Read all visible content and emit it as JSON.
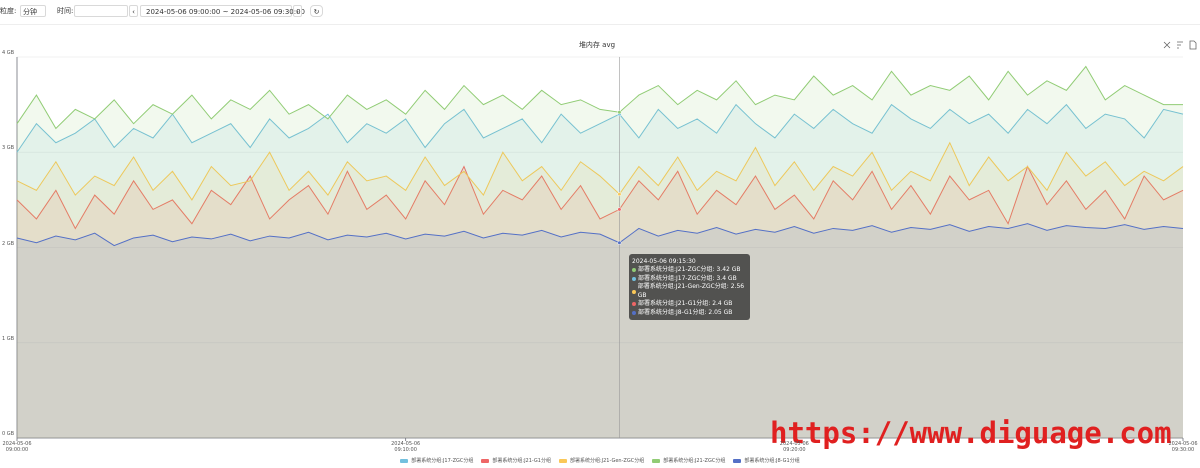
{
  "toolbar": {
    "granularity_label": "粒度:",
    "granularity": "分钟",
    "time_label": "时间:",
    "range": "2024-05-06 09:00:00 ~ 2024-05-06 09:30:00"
  },
  "watermark": "https://www.diguage.com",
  "chart_data": {
    "type": "area",
    "title": "堆内存 avg",
    "categories": [
      "2024-05-06 09:00:00",
      "2024-05-06 09:00:30",
      "2024-05-06 09:01:00",
      "2024-05-06 09:01:30",
      "2024-05-06 09:02:00",
      "2024-05-06 09:02:30",
      "2024-05-06 09:03:00",
      "2024-05-06 09:03:30",
      "2024-05-06 09:04:00",
      "2024-05-06 09:04:30",
      "2024-05-06 09:05:00",
      "2024-05-06 09:05:30",
      "2024-05-06 09:06:00",
      "2024-05-06 09:06:30",
      "2024-05-06 09:07:00",
      "2024-05-06 09:07:30",
      "2024-05-06 09:08:00",
      "2024-05-06 09:08:30",
      "2024-05-06 09:09:00",
      "2024-05-06 09:09:30",
      "2024-05-06 09:10:00",
      "2024-05-06 09:10:30",
      "2024-05-06 09:11:00",
      "2024-05-06 09:11:30",
      "2024-05-06 09:12:00",
      "2024-05-06 09:12:30",
      "2024-05-06 09:13:00",
      "2024-05-06 09:13:30",
      "2024-05-06 09:14:00",
      "2024-05-06 09:14:30",
      "2024-05-06 09:15:00",
      "2024-05-06 09:15:30",
      "2024-05-06 09:16:00",
      "2024-05-06 09:16:30",
      "2024-05-06 09:17:00",
      "2024-05-06 09:17:30",
      "2024-05-06 09:18:00",
      "2024-05-06 09:18:30",
      "2024-05-06 09:19:00",
      "2024-05-06 09:19:30",
      "2024-05-06 09:20:00",
      "2024-05-06 09:20:30",
      "2024-05-06 09:21:00",
      "2024-05-06 09:21:30",
      "2024-05-06 09:22:00",
      "2024-05-06 09:22:30",
      "2024-05-06 09:23:00",
      "2024-05-06 09:23:30",
      "2024-05-06 09:24:00",
      "2024-05-06 09:24:30",
      "2024-05-06 09:25:00",
      "2024-05-06 09:25:30",
      "2024-05-06 09:26:00",
      "2024-05-06 09:26:30",
      "2024-05-06 09:27:00",
      "2024-05-06 09:27:30",
      "2024-05-06 09:28:00",
      "2024-05-06 09:28:30",
      "2024-05-06 09:29:00",
      "2024-05-06 09:29:30",
      "2024-05-06 09:30:00"
    ],
    "series": [
      {
        "name": "部署系统分组:J17-ZGC分组",
        "color": "#73c0de",
        "values": [
          3.0,
          3.3,
          3.1,
          3.2,
          3.35,
          3.05,
          3.25,
          3.15,
          3.4,
          3.1,
          3.2,
          3.3,
          3.05,
          3.35,
          3.15,
          3.25,
          3.4,
          3.1,
          3.3,
          3.2,
          3.35,
          3.05,
          3.3,
          3.45,
          3.15,
          3.25,
          3.35,
          3.1,
          3.4,
          3.2,
          3.3,
          3.4,
          3.15,
          3.45,
          3.25,
          3.35,
          3.2,
          3.5,
          3.3,
          3.15,
          3.4,
          3.25,
          3.45,
          3.3,
          3.2,
          3.5,
          3.35,
          3.25,
          3.45,
          3.3,
          3.4,
          3.2,
          3.45,
          3.3,
          3.5,
          3.25,
          3.4,
          3.35,
          3.15,
          3.45,
          3.4
        ]
      },
      {
        "name": "部署系统分组:J21-G1分组",
        "color": "#ee6666",
        "values": [
          2.5,
          2.3,
          2.6,
          2.2,
          2.55,
          2.35,
          2.7,
          2.4,
          2.5,
          2.25,
          2.6,
          2.45,
          2.75,
          2.3,
          2.5,
          2.65,
          2.35,
          2.8,
          2.4,
          2.55,
          2.3,
          2.7,
          2.45,
          2.85,
          2.35,
          2.6,
          2.5,
          2.75,
          2.4,
          2.65,
          2.3,
          2.4,
          2.7,
          2.5,
          2.8,
          2.35,
          2.6,
          2.45,
          2.75,
          2.4,
          2.55,
          2.3,
          2.7,
          2.5,
          2.8,
          2.4,
          2.65,
          2.35,
          2.75,
          2.5,
          2.6,
          2.25,
          2.85,
          2.45,
          2.7,
          2.4,
          2.6,
          2.3,
          2.75,
          2.5,
          2.6
        ]
      },
      {
        "name": "部署系统分组:J21-Gen-ZGC分组",
        "color": "#fac858",
        "values": [
          2.7,
          2.6,
          2.9,
          2.55,
          2.75,
          2.65,
          2.95,
          2.6,
          2.8,
          2.5,
          2.85,
          2.65,
          2.7,
          3.0,
          2.6,
          2.8,
          2.55,
          2.9,
          2.7,
          2.75,
          2.6,
          2.95,
          2.65,
          2.8,
          2.55,
          3.0,
          2.7,
          2.85,
          2.6,
          2.9,
          2.75,
          2.56,
          2.85,
          2.65,
          2.95,
          2.6,
          2.8,
          2.7,
          3.05,
          2.65,
          2.9,
          2.6,
          2.85,
          2.75,
          3.0,
          2.6,
          2.8,
          2.7,
          3.1,
          2.65,
          2.95,
          2.7,
          2.85,
          2.6,
          3.0,
          2.75,
          2.9,
          2.65,
          2.8,
          2.7,
          2.85
        ]
      },
      {
        "name": "部署系统分组:J21-ZGC分组",
        "color": "#91cc75",
        "values": [
          3.3,
          3.6,
          3.25,
          3.45,
          3.35,
          3.55,
          3.3,
          3.5,
          3.4,
          3.6,
          3.35,
          3.55,
          3.45,
          3.65,
          3.4,
          3.5,
          3.35,
          3.6,
          3.45,
          3.55,
          3.4,
          3.65,
          3.45,
          3.7,
          3.5,
          3.6,
          3.45,
          3.65,
          3.5,
          3.55,
          3.45,
          3.42,
          3.6,
          3.7,
          3.5,
          3.65,
          3.55,
          3.75,
          3.5,
          3.6,
          3.55,
          3.8,
          3.6,
          3.7,
          3.55,
          3.85,
          3.6,
          3.7,
          3.65,
          3.8,
          3.55,
          3.85,
          3.6,
          3.75,
          3.65,
          3.9,
          3.55,
          3.7,
          3.6,
          3.5,
          3.5
        ]
      },
      {
        "name": "部署系统分组:J8-G1分组",
        "color": "#5470c6",
        "values": [
          2.1,
          2.05,
          2.12,
          2.08,
          2.15,
          2.02,
          2.1,
          2.13,
          2.06,
          2.11,
          2.09,
          2.14,
          2.07,
          2.12,
          2.1,
          2.16,
          2.08,
          2.13,
          2.11,
          2.15,
          2.09,
          2.14,
          2.12,
          2.17,
          2.1,
          2.15,
          2.13,
          2.18,
          2.11,
          2.16,
          2.14,
          2.05,
          2.2,
          2.12,
          2.18,
          2.15,
          2.21,
          2.14,
          2.19,
          2.16,
          2.22,
          2.15,
          2.2,
          2.18,
          2.23,
          2.16,
          2.21,
          2.19,
          2.24,
          2.17,
          2.22,
          2.2,
          2.25,
          2.18,
          2.23,
          2.21,
          2.2,
          2.24,
          2.19,
          2.22,
          2.2
        ]
      }
    ],
    "ylim": [
      0,
      4
    ],
    "yticks": [
      {
        "value": 0,
        "label": "0 GB"
      },
      {
        "value": 1,
        "label": "1 GB"
      },
      {
        "value": 2,
        "label": "2 GB"
      },
      {
        "value": 3,
        "label": "3 GB"
      },
      {
        "value": 4,
        "label": "4 GB"
      }
    ],
    "xticks": [
      {
        "value": "2024-05-06 09:00:00",
        "label": "2024-05-06\n09:00:00"
      },
      {
        "value": "2024-05-06 09:10:00",
        "label": "2024-05-06\n09:10:00"
      },
      {
        "value": "2024-05-06 09:20:00",
        "label": "2024-05-06\n09:20:00"
      },
      {
        "value": "2024-05-06 09:30:00",
        "label": "2024-05-06\n09:30:00"
      }
    ],
    "grid": true,
    "tooltip": {
      "at": "2024-05-06 09:15:30",
      "items": [
        "部署系统分组:J21-ZGC分组: 3.42 GB",
        "部署系统分组:J17-ZGC分组: 3.4 GB",
        "部署系统分组:J21-Gen-ZGC分组: 2.56 GB",
        "部署系统分组:J21-G1分组: 2.4 GB",
        "部署系统分组:J8-G1分组: 2.05 GB"
      ]
    }
  }
}
